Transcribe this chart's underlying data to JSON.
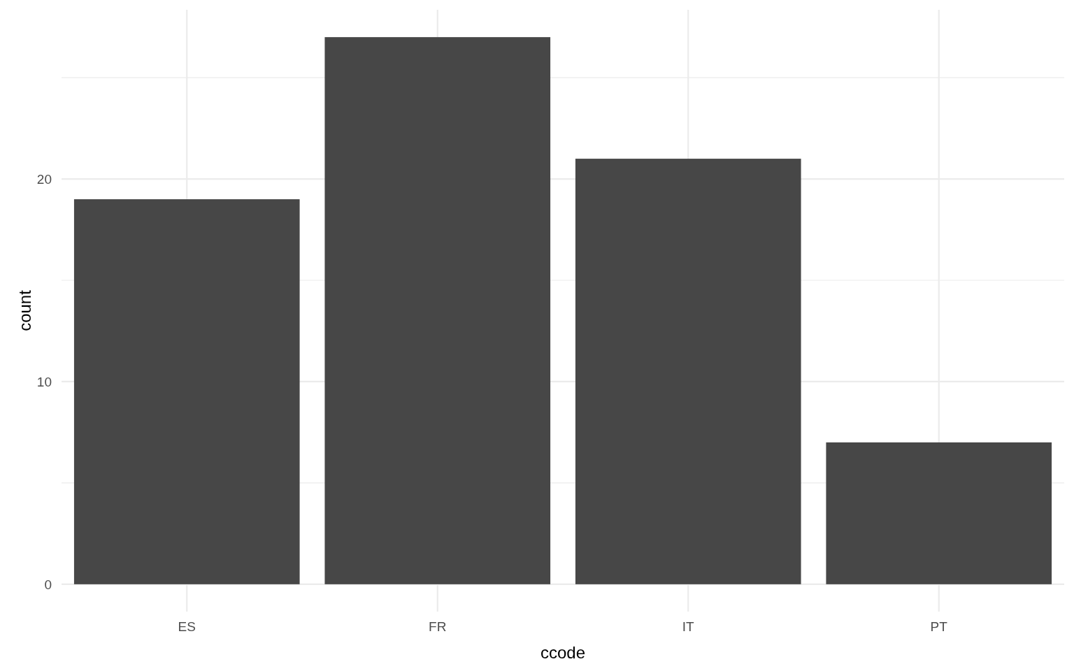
{
  "chart_data": {
    "type": "bar",
    "xlabel": "ccode",
    "ylabel": "count",
    "categories": [
      "ES",
      "FR",
      "IT",
      "PT"
    ],
    "values": [
      19,
      27,
      21,
      7
    ],
    "color": "#474747",
    "ylim": [
      -1.35,
      28.35
    ],
    "yticks": [
      0,
      {
        "value": 5,
        "label": null
      },
      10,
      {
        "value": 15,
        "label": null
      },
      20,
      {
        "value": 25,
        "label": null
      }
    ],
    "grid": true
  }
}
